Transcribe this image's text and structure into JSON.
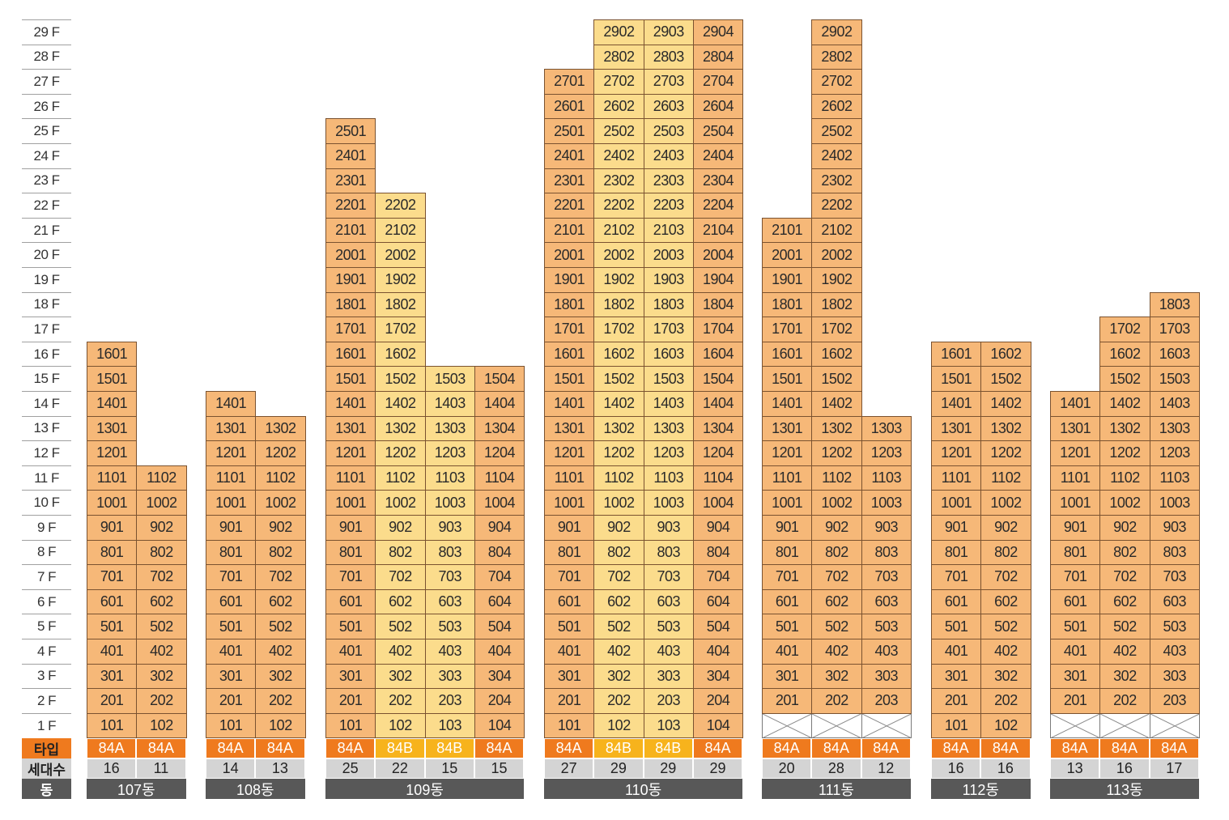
{
  "floor_labels": [
    "29 F",
    "28 F",
    "27 F",
    "26 F",
    "25 F",
    "24 F",
    "23 F",
    "22 F",
    "21 F",
    "20 F",
    "19 F",
    "18 F",
    "17 F",
    "16 F",
    "15 F",
    "14 F",
    "13 F",
    "12 F",
    "11 F",
    "10 F",
    "9 F",
    "8 F",
    "7 F",
    "6 F",
    "5 F",
    "4 F",
    "3 F",
    "2 F",
    "1 F"
  ],
  "legend": {
    "type_label": "타입",
    "count_label": "세대수",
    "building_label": "동"
  },
  "colors": {
    "type_84A": "#ef7a1e",
    "type_84B": "#f7b31c",
    "unit_84A": "#f6b878",
    "unit_84B": "#fbdc8c",
    "household_count": "#d4d4d4",
    "building_bar": "#585858"
  },
  "buildings": [
    {
      "name": "107동",
      "lines": [
        {
          "type": "84A",
          "count": "16",
          "top_floor": 16,
          "first_floor_empty": false,
          "suffix": "01"
        },
        {
          "type": "84A",
          "count": "11",
          "top_floor": 11,
          "first_floor_empty": false,
          "suffix": "02"
        }
      ]
    },
    {
      "name": "108동",
      "lines": [
        {
          "type": "84A",
          "count": "14",
          "top_floor": 14,
          "first_floor_empty": false,
          "suffix": "01"
        },
        {
          "type": "84A",
          "count": "13",
          "top_floor": 13,
          "first_floor_empty": false,
          "suffix": "02"
        }
      ]
    },
    {
      "name": "109동",
      "lines": [
        {
          "type": "84A",
          "count": "25",
          "top_floor": 25,
          "first_floor_empty": false,
          "suffix": "01"
        },
        {
          "type": "84B",
          "count": "22",
          "top_floor": 22,
          "first_floor_empty": false,
          "suffix": "02"
        },
        {
          "type": "84B",
          "count": "15",
          "top_floor": 15,
          "first_floor_empty": false,
          "suffix": "03"
        },
        {
          "type": "84A",
          "count": "15",
          "top_floor": 15,
          "first_floor_empty": false,
          "suffix": "04"
        }
      ]
    },
    {
      "name": "110동",
      "lines": [
        {
          "type": "84A",
          "count": "27",
          "top_floor": 27,
          "first_floor_empty": false,
          "suffix": "01"
        },
        {
          "type": "84B",
          "count": "29",
          "top_floor": 29,
          "first_floor_empty": false,
          "suffix": "02"
        },
        {
          "type": "84B",
          "count": "29",
          "top_floor": 29,
          "first_floor_empty": false,
          "suffix": "03"
        },
        {
          "type": "84A",
          "count": "29",
          "top_floor": 29,
          "first_floor_empty": false,
          "suffix": "04"
        }
      ]
    },
    {
      "name": "111동",
      "lines": [
        {
          "type": "84A",
          "count": "20",
          "top_floor": 21,
          "first_floor_empty": true,
          "suffix": "01"
        },
        {
          "type": "84A",
          "count": "28",
          "top_floor": 29,
          "first_floor_empty": true,
          "suffix": "02"
        },
        {
          "type": "84A",
          "count": "12",
          "top_floor": 13,
          "first_floor_empty": true,
          "suffix": "03"
        }
      ]
    },
    {
      "name": "112동",
      "lines": [
        {
          "type": "84A",
          "count": "16",
          "top_floor": 16,
          "first_floor_empty": false,
          "suffix": "01"
        },
        {
          "type": "84A",
          "count": "16",
          "top_floor": 16,
          "first_floor_empty": false,
          "suffix": "02"
        }
      ]
    },
    {
      "name": "113동",
      "lines": [
        {
          "type": "84A",
          "count": "13",
          "top_floor": 14,
          "first_floor_empty": true,
          "suffix": "01"
        },
        {
          "type": "84A",
          "count": "16",
          "top_floor": 17,
          "first_floor_empty": true,
          "suffix": "02"
        },
        {
          "type": "84A",
          "count": "17",
          "top_floor": 18,
          "first_floor_empty": true,
          "suffix": "03"
        }
      ]
    }
  ]
}
